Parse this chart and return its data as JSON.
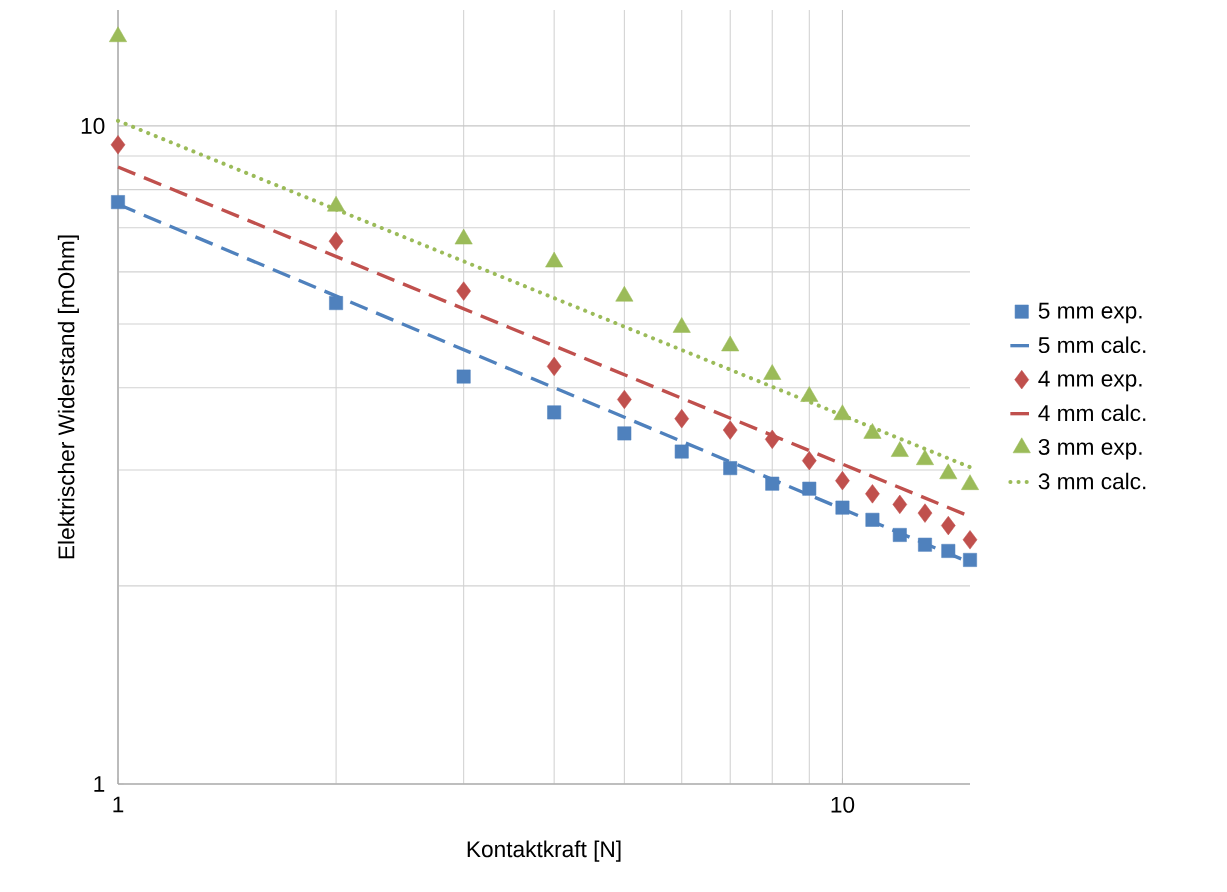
{
  "chart_data": {
    "type": "scatter",
    "xlabel": "Kontaktkraft [N]",
    "ylabel": "Elektrischer Widerstand [mOhm]",
    "log": "xy",
    "grid": true,
    "legend": "right",
    "xlim": [
      1,
      15
    ],
    "ylim": [
      1,
      15
    ],
    "xticks": [
      1,
      10
    ],
    "yticks": [
      1,
      10
    ],
    "series": [
      {
        "name": "5 mm exp.",
        "type": "scatter",
        "marker": "square",
        "color": "#4f81bd",
        "x": [
          1,
          2,
          3,
          4,
          5,
          6,
          7,
          8,
          9,
          10,
          11,
          12,
          13,
          14,
          15
        ],
        "values": [
          7.66,
          5.38,
          4.16,
          3.67,
          3.41,
          3.2,
          3.02,
          2.86,
          2.81,
          2.63,
          2.52,
          2.39,
          2.31,
          2.26,
          2.19
        ]
      },
      {
        "name": "5 mm calc.",
        "type": "line",
        "line_style": "dashed",
        "color": "#4f81bd",
        "x": [
          1,
          15
        ],
        "values": [
          7.6,
          2.17
        ]
      },
      {
        "name": "4 mm exp.",
        "type": "scatter",
        "marker": "diamond",
        "color": "#c0504d",
        "x": [
          1,
          2,
          3,
          4,
          5,
          6,
          7,
          8,
          9,
          10,
          11,
          12,
          13,
          14,
          15
        ],
        "values": [
          9.36,
          6.68,
          5.61,
          4.31,
          3.84,
          3.59,
          3.45,
          3.34,
          3.1,
          2.89,
          2.76,
          2.66,
          2.58,
          2.47,
          2.35
        ]
      },
      {
        "name": "4 mm calc.",
        "type": "line",
        "line_style": "dashed",
        "color": "#c0504d",
        "x": [
          1,
          15
        ],
        "values": [
          8.66,
          2.55
        ]
      },
      {
        "name": "3 mm exp.",
        "type": "scatter",
        "marker": "triangle",
        "color": "#9bbb59",
        "x": [
          1,
          2,
          3,
          4,
          5,
          6,
          7,
          8,
          9,
          10,
          11,
          12,
          13,
          14,
          15
        ],
        "values": [
          13.66,
          7.55,
          6.73,
          6.21,
          5.51,
          4.94,
          4.63,
          4.19,
          3.88,
          3.64,
          3.41,
          3.2,
          3.11,
          2.96,
          2.85
        ]
      },
      {
        "name": "3 mm calc.",
        "type": "line",
        "line_style": "dotted",
        "color": "#9bbb59",
        "x": [
          1,
          15
        ],
        "values": [
          10.18,
          3.03
        ]
      }
    ]
  }
}
